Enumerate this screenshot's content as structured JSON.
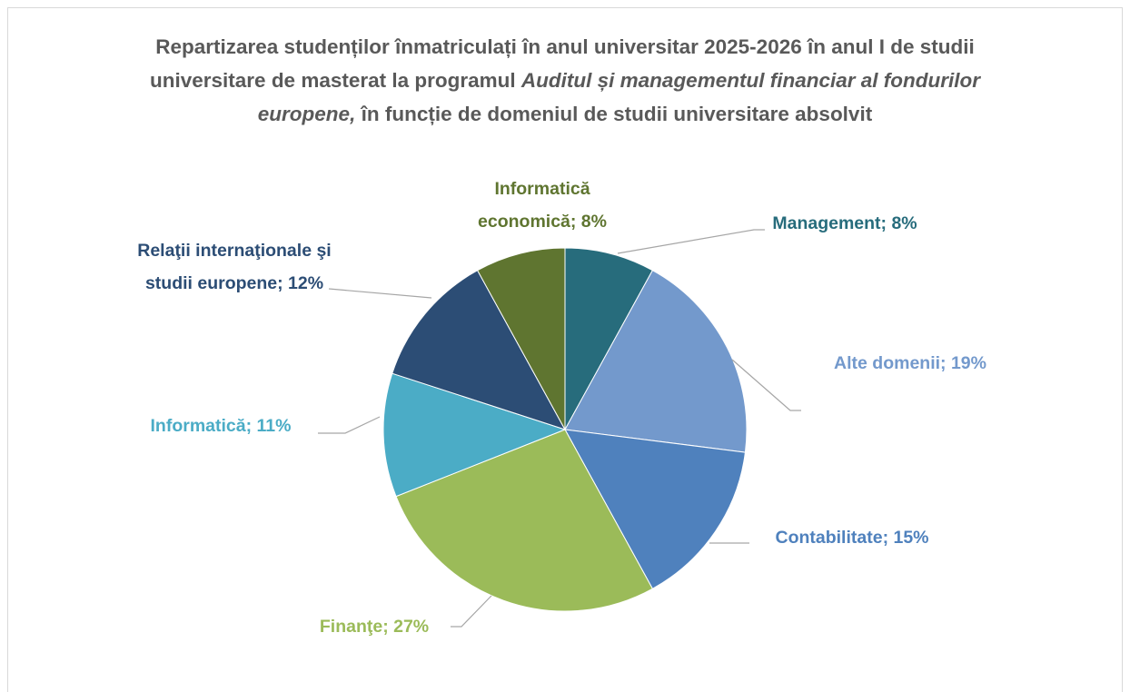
{
  "chart_data": {
    "type": "pie",
    "title": [
      "Repartizarea studenților înmatriculați în anul universitar 2025-2026 în anul I de studii universitare de masterat la programul",
      "Auditul și managementul financiar al fondurilor europene,",
      "în funcție de domeniul de studii universitare absolvit"
    ],
    "values": [
      8,
      19,
      15,
      27,
      11,
      12,
      8
    ],
    "value_labels": [
      "Management; 8%",
      "Alte domenii; 19%",
      "Contabilitate; 15%",
      "Finanţe; 27%",
      "Informatică; 11%",
      "Relaţii internaţionale şi studii europene; 12%",
      "Informatică economică; 8%"
    ],
    "colors": [
      "#276c7c",
      "#7399cc",
      "#4f81bd",
      "#9bbb59",
      "#4bacc6",
      "#2c4d75",
      "#5f7530"
    ]
  }
}
